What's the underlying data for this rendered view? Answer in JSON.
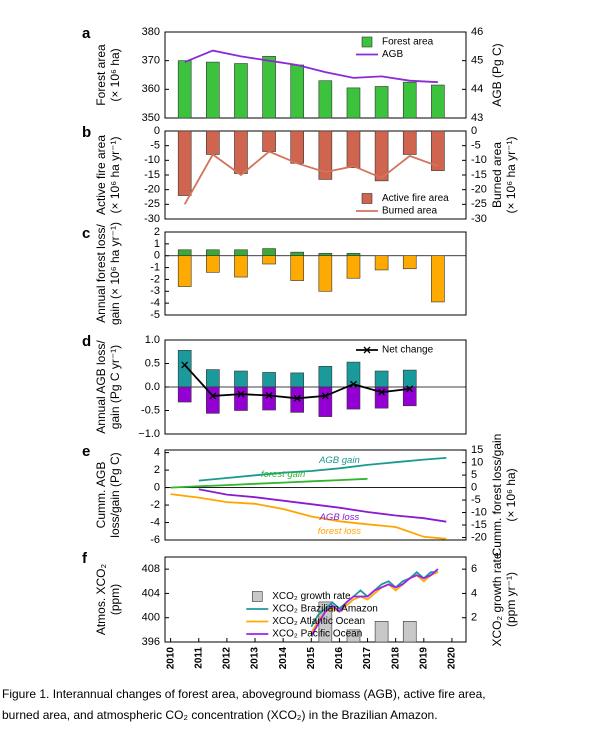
{
  "chart_data": [
    {
      "type": "combo",
      "letter": "a",
      "ylabel": [
        "Forest area",
        "(× 10⁶ ha)"
      ],
      "y2label": [
        "AGB (Pg C)"
      ],
      "xlim": [
        2009.8,
        2020.5
      ],
      "x": [
        2010.5,
        2011.5,
        2012.5,
        2013.5,
        2014.5,
        2015.5,
        2016.5,
        2017.5,
        2018.5,
        2019.5
      ],
      "ylim": [
        350,
        380
      ],
      "yticks": [
        350,
        360,
        370,
        380
      ],
      "y2lim": [
        43,
        46
      ],
      "y2ticks": [
        43,
        44,
        45,
        46
      ],
      "legend": "upper right",
      "series": [
        {
          "name": "Forest area",
          "kind": "bar",
          "color": "#3cc23c",
          "values": [
            370,
            369.5,
            369,
            371.5,
            368.5,
            363,
            360.5,
            361,
            362.5,
            361.5
          ]
        },
        {
          "name": "AGB",
          "kind": "line",
          "axis": "y2",
          "color": "#8b2ad6",
          "values": [
            44.95,
            45.35,
            45.15,
            45.0,
            44.85,
            44.6,
            44.4,
            44.45,
            44.3,
            44.25
          ]
        }
      ]
    },
    {
      "type": "combo",
      "letter": "b",
      "ylabel": [
        "Active fire area",
        "(× 10⁶ ha yr⁻¹)"
      ],
      "y2label": [
        "Burned area",
        "(× 10⁶ ha yr⁻¹)"
      ],
      "xlim": [
        2009.8,
        2020.5
      ],
      "x": [
        2010.5,
        2011.5,
        2012.5,
        2013.5,
        2014.5,
        2015.5,
        2016.5,
        2017.5,
        2018.5,
        2019.5
      ],
      "ylim": [
        -30,
        0
      ],
      "yticks": [
        0,
        -5,
        -10,
        -15,
        -20,
        -25,
        -30
      ],
      "y2lim": [
        -30,
        0
      ],
      "y2ticks": [
        0,
        -5,
        -10,
        -15,
        -20,
        -25,
        -30
      ],
      "legend": "lower right",
      "series": [
        {
          "name": "Active fire area",
          "kind": "bar",
          "color": "#d0654f",
          "values": [
            -22,
            -8,
            -14.5,
            -7,
            -11,
            -16.5,
            -12.5,
            -17,
            -8,
            -13.5
          ]
        },
        {
          "name": "Burned area",
          "kind": "line",
          "axis": "y2",
          "color": "#d2735a",
          "values": [
            -25,
            -8,
            -15,
            -7,
            -11,
            -14,
            -12,
            -16,
            -8.5,
            -12
          ]
        }
      ]
    },
    {
      "type": "bar",
      "letter": "c",
      "ylabel": [
        "Annual forest loss/",
        "gain (× 10⁶ ha yr⁻¹)"
      ],
      "xlim": [
        2009.8,
        2020.5
      ],
      "x": [
        2010.5,
        2011.5,
        2012.5,
        2013.5,
        2014.5,
        2015.5,
        2016.5,
        2017.5,
        2018.5,
        2019.5
      ],
      "ylim": [
        -5,
        2
      ],
      "yticks": [
        2,
        1,
        0,
        -1,
        -2,
        -3,
        -4,
        -5
      ],
      "series": [
        {
          "kind": "bar",
          "color": "#3aaa35",
          "values": [
            0.5,
            0.5,
            0.5,
            0.6,
            0.3,
            0.2,
            0.2,
            0,
            0,
            0
          ]
        },
        {
          "kind": "bar",
          "color": "#ffaa00",
          "values": [
            -2.6,
            -1.4,
            -1.8,
            -0.7,
            -2.1,
            -3.0,
            -1.9,
            -1.2,
            -1.1,
            -3.9
          ]
        }
      ]
    },
    {
      "type": "combo",
      "letter": "d",
      "ylabel": [
        "Annual AGB loss/",
        "gain (Pg C yr⁻¹)"
      ],
      "xlim": [
        2009.8,
        2020.5
      ],
      "x": [
        2010.5,
        2011.5,
        2012.5,
        2013.5,
        2014.5,
        2015.5,
        2016.5,
        2017.5,
        2018.5
      ],
      "ylim": [
        -1,
        1
      ],
      "yticks": [
        {
          "value": 1,
          "label": "1.0"
        },
        0.5,
        {
          "value": 0,
          "label": "0.0"
        },
        -0.5,
        {
          "value": -1,
          "label": "−1.0"
        }
      ],
      "legend": "upper right",
      "series": [
        {
          "kind": "bar",
          "color": "#1a9a9a",
          "values": [
            0.78,
            0.37,
            0.34,
            0.31,
            0.3,
            0.44,
            0.53,
            0.34,
            0.36
          ]
        },
        {
          "kind": "bar",
          "color": "#9400d3",
          "values": [
            -0.32,
            -0.56,
            -0.5,
            -0.49,
            -0.54,
            -0.63,
            -0.47,
            -0.45,
            -0.4
          ]
        },
        {
          "name": "Net change",
          "kind": "line",
          "marker": "x",
          "color": "#000000",
          "values": [
            0.47,
            -0.19,
            -0.15,
            -0.18,
            -0.24,
            -0.19,
            0.06,
            -0.11,
            -0.04
          ]
        }
      ]
    },
    {
      "type": "line",
      "letter": "e",
      "ylabel": [
        "Cumm. AGB",
        "loss/gain (Pg C)"
      ],
      "y2label": [
        "Cumm. forest loss/gain",
        "(× 10⁶ ha)"
      ],
      "xlim": [
        2009.8,
        2020.5
      ],
      "ylim": [
        -6,
        4.3
      ],
      "yticks": [
        4,
        2,
        0,
        -2,
        -4,
        -6
      ],
      "y2lim": [
        -21,
        15.05
      ],
      "y2ticks": [
        15,
        10,
        5,
        0,
        -5,
        -10,
        -15,
        -20
      ],
      "series": [
        {
          "name": "AGB gain",
          "kind": "line",
          "color": "#199a8e",
          "x": [
            2011,
            2012,
            2013,
            2014,
            2015,
            2016,
            2017,
            2018,
            2019,
            2019.8
          ],
          "values": [
            0.8,
            1.1,
            1.4,
            1.7,
            1.9,
            2.2,
            2.6,
            2.9,
            3.2,
            3.4
          ]
        },
        {
          "name": "forest gain",
          "kind": "line",
          "axis": "y2",
          "color": "#2fb52f",
          "x": [
            2010,
            2011,
            2012,
            2013,
            2014,
            2015,
            2016,
            2017
          ],
          "values": [
            0,
            0.5,
            1,
            1.5,
            2,
            2.5,
            3,
            3.5
          ]
        },
        {
          "name": "AGB loss",
          "kind": "line",
          "color": "#8a1bd1",
          "x": [
            2011,
            2012,
            2013,
            2014,
            2015,
            2016,
            2017,
            2018,
            2019,
            2019.8
          ],
          "values": [
            -0.2,
            -0.8,
            -1.1,
            -1.5,
            -1.9,
            -2.3,
            -2.8,
            -3.2,
            -3.5,
            -3.9
          ]
        },
        {
          "name": "forest loss",
          "kind": "line",
          "axis": "y2",
          "color": "#ffa500",
          "x": [
            2010,
            2011,
            2012,
            2013,
            2014,
            2015,
            2016,
            2017,
            2018,
            2019,
            2019.8
          ],
          "values": [
            -2.6,
            -4,
            -5.8,
            -6.5,
            -8.6,
            -11.6,
            -13.5,
            -14.7,
            -15.8,
            -19.7,
            -20.5
          ]
        }
      ]
    },
    {
      "type": "combo",
      "letter": "f",
      "ylabel": [
        "Atmos. XCO₂",
        "(ppm)"
      ],
      "y2label": [
        "XCO₂ growth rate",
        "(ppm yr⁻¹)"
      ],
      "xlim": [
        2009.8,
        2020.5
      ],
      "xticks": [
        2010,
        2011,
        2012,
        2013,
        2014,
        2015,
        2016,
        2017,
        2018,
        2019,
        2020
      ],
      "x": [
        2015.5,
        2016.5,
        2017.5,
        2018.5
      ],
      "ylim": [
        396,
        410
      ],
      "yticks": [
        396,
        400,
        404,
        408
      ],
      "y2lim": [
        0,
        7
      ],
      "y2ticks": [
        2,
        4,
        6
      ],
      "legend": "lower center",
      "series": [
        {
          "name": "XCO₂ growth rate",
          "kind": "bar",
          "axis": "y2",
          "color": "#c8c8c8",
          "values": [
            3.3,
            1.0,
            1.7,
            1.7
          ]
        },
        {
          "name": "XCO₂ Brazilian Amazon",
          "kind": "line",
          "color": "#1e9a9a",
          "x": [
            2015,
            2015.25,
            2015.5,
            2015.75,
            2016,
            2016.25,
            2016.5,
            2016.75,
            2017,
            2017.25,
            2017.5,
            2017.75,
            2018,
            2018.25,
            2018.5,
            2018.75,
            2019,
            2019.25,
            2019.5
          ],
          "values": [
            398.5,
            400.5,
            401.5,
            402.5,
            401.5,
            402.5,
            403.5,
            404.5,
            403.5,
            404.5,
            405.5,
            406,
            405,
            406,
            406.5,
            407.5,
            406.5,
            407.5,
            407.5
          ]
        },
        {
          "name": "XCO₂ Atlantic Ocean",
          "kind": "line",
          "color": "#ffaa00",
          "x": [
            2015,
            2015.25,
            2015.5,
            2015.75,
            2016,
            2016.25,
            2016.5,
            2016.75,
            2017,
            2017.25,
            2017.5,
            2017.75,
            2018,
            2018.25,
            2018.5,
            2018.75,
            2019,
            2019.25,
            2019.5
          ],
          "values": [
            397.5,
            399.5,
            401,
            401.5,
            401,
            402,
            403,
            403.5,
            403,
            404,
            405,
            405.5,
            404.5,
            405.5,
            406.5,
            407,
            406,
            407,
            407.5
          ]
        },
        {
          "name": "XCO₂ Pacific Ocean",
          "kind": "line",
          "color": "#a020f0",
          "x": [
            2015,
            2015.25,
            2015.5,
            2015.75,
            2016,
            2016.25,
            2016.5,
            2016.75,
            2017,
            2017.25,
            2017.5,
            2017.75,
            2018,
            2018.25,
            2018.5,
            2018.75,
            2019,
            2019.25,
            2019.5
          ],
          "values": [
            397,
            399,
            401,
            402,
            401,
            402.5,
            403.5,
            403.5,
            403.5,
            404.5,
            405,
            405.5,
            405,
            405.5,
            406.5,
            407,
            406.5,
            407,
            408
          ]
        }
      ]
    }
  ],
  "caption": [
    "Figure 1. Interannual changes of forest area, aboveground biomass (AGB), active fire area,",
    "burned area, and atmospheric CO₂ concentration (XCO₂) in the Brazilian Amazon."
  ]
}
